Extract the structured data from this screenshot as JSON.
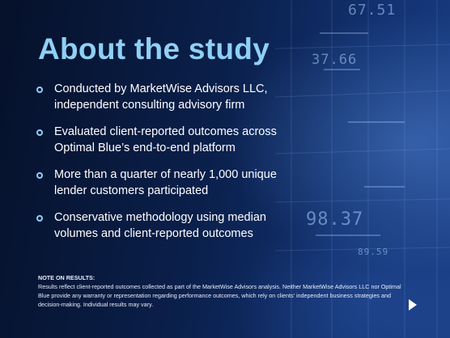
{
  "slide": {
    "title": "About the study",
    "bullets": [
      {
        "text": "Conducted by MarketWise Advisors LLC, independent consulting advisory firm"
      },
      {
        "text": "Evaluated client-reported outcomes across Optimal Blue’s end-to-end platform"
      },
      {
        "text": "More than a quarter of nearly 1,000 unique lender customers participated"
      },
      {
        "text": "Conservative methodology using median volumes and client-reported outcomes"
      }
    ],
    "note_heading": "NOTE ON RESULTS:",
    "note_body": "Results reflect client-reported outcomes collected as part of the MarketWise Advisors analysis. Neither MarketWise Advisors LLC nor Optimal Blue provide any warranty or representation regarding performance outcomes, which rely on clients’ independent business strategies and decision-making.  Individual results may vary.",
    "play_icon": "play-icon"
  },
  "background_numbers": [
    "67.51",
    "37.66",
    "98.37",
    "89.59"
  ],
  "colors": {
    "title": "#8fd0f5",
    "bullet_marker": "#8fd0f5",
    "background_dark": "#06112a",
    "background_light": "#1b3f86"
  }
}
